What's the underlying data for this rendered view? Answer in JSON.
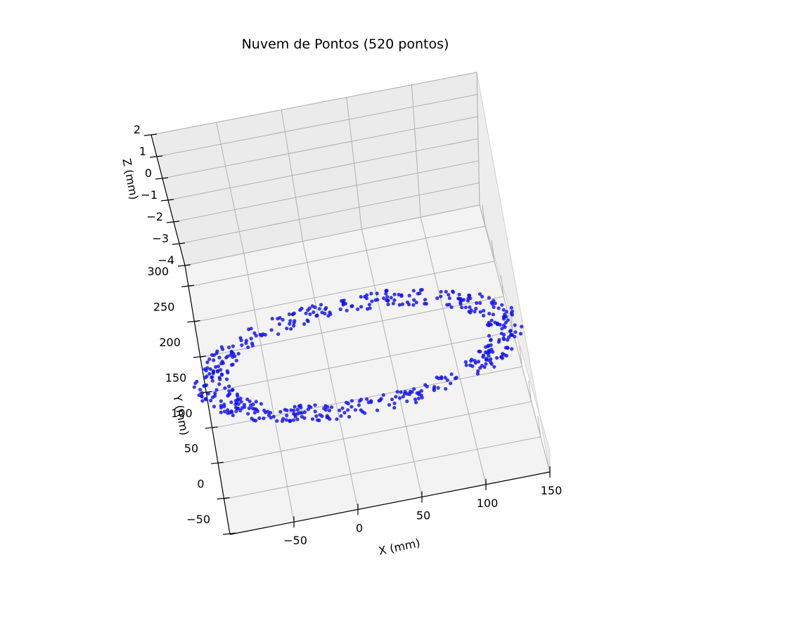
{
  "chart_data": {
    "type": "scatter",
    "title": "Nuvem de Pontos (520 pontos)",
    "xlabel": "X (mm)",
    "ylabel": "Y (mm)",
    "zlabel": "Z (mm)",
    "x_ticks": [
      "−50",
      "0",
      "50",
      "100",
      "150"
    ],
    "y_ticks": [
      "−50",
      "0",
      "50",
      "100",
      "150",
      "200",
      "250",
      "300"
    ],
    "z_ticks": [
      "2",
      "1",
      "0",
      "−1",
      "−2",
      "−3",
      "−4"
    ],
    "xlim": [
      -100,
      150
    ],
    "ylim": [
      -50,
      330
    ],
    "zlim": [
      -4,
      2
    ],
    "grid": true,
    "point_color": "#1010ee",
    "point_count": 520,
    "ring": {
      "center_x": 25,
      "center_y": 160,
      "radius_x": 120,
      "radius_y": 72,
      "band_width": 14
    }
  }
}
